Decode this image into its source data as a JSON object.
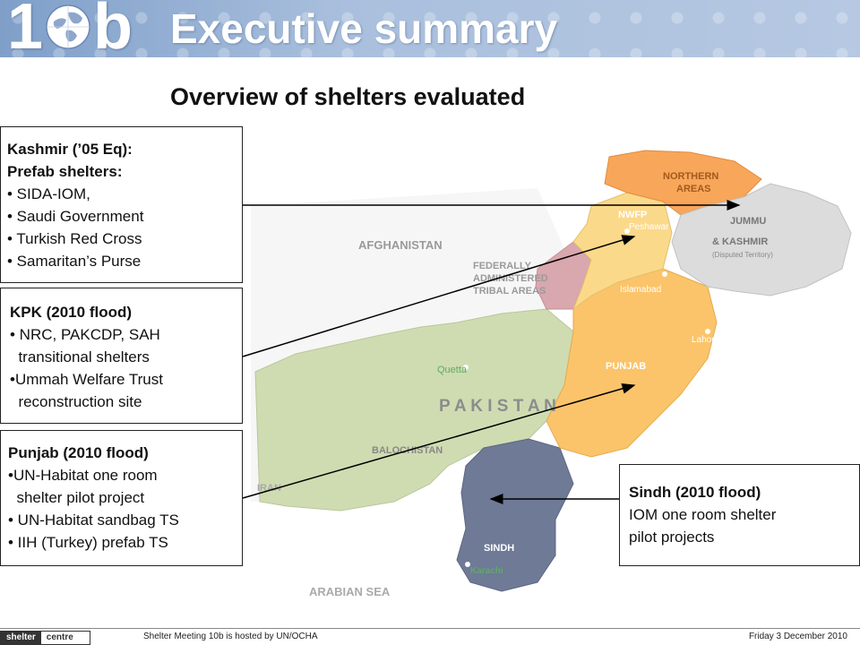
{
  "header": {
    "logo_left": "1",
    "logo_right": "b",
    "title": "Executive summary"
  },
  "slide_title": "Overview of shelters evaluated",
  "map": {
    "labels": {
      "northern_areas_1": "NORTHERN",
      "northern_areas_2": "AREAS",
      "jk_1": "JUMMU",
      "jk_2": "& KASHMIR",
      "jk_3": "(Disputed Territory)",
      "nwfp": "NWFP",
      "peshawar": "Peshawar",
      "afghanistan": "AFGHANISTAN",
      "fata_1": "FEDERALLY",
      "fata_2": "ADMINISTERED",
      "fata_3": "TRIBAL AREAS",
      "islamabad": "Islamabad",
      "lahore": "Lahore",
      "quetta": "Quetta",
      "punjab": "PUNJAB",
      "pakistan": "P A K I S T A N",
      "balochistan": "BALOCHISTAN",
      "iran": "IRAN",
      "sindh": "SINDH",
      "karachi": "Karachi",
      "arabian_sea": "ARABIAN SEA"
    }
  },
  "boxes": {
    "kashmir": {
      "head1": "Kashmir (’05 Eq):",
      "head2": "Prefab shelters:",
      "items": [
        "• SIDA-IOM,",
        "• Saudi Government",
        "• Turkish Red Cross",
        "• Samaritan’s Purse"
      ]
    },
    "kpk": {
      "head": "KPK (2010 flood)",
      "items": [
        "• NRC, PAKCDP, SAH",
        "  transitional shelters",
        "•Ummah Welfare Trust",
        "  reconstruction site"
      ]
    },
    "punjab": {
      "head": "Punjab (2010 flood)",
      "items": [
        "•UN-Habitat one room",
        "  shelter pilot project",
        "• UN-Habitat sandbag TS",
        "• IIH (Turkey) prefab TS"
      ]
    },
    "sindh": {
      "head": "Sindh (2010 flood)",
      "line1": "IOM one room shelter",
      "line2": "pilot projects"
    }
  },
  "footer": {
    "logo_dark": "shelter",
    "logo_light": "centre",
    "middle": "Shelter Meeting 10b is hosted by UN/OCHA",
    "date": "Friday 3 December 2010"
  },
  "colors": {
    "banner": "#8fa8cf",
    "kashmir_region": "#dcdcdc",
    "northern_areas": "#f8a65a",
    "nwfp": "#fbd98a",
    "fata": "#d9a7ae",
    "punjab": "#fbc46a",
    "balochistan": "#cfdcb1",
    "sindh": "#6e7a96"
  }
}
